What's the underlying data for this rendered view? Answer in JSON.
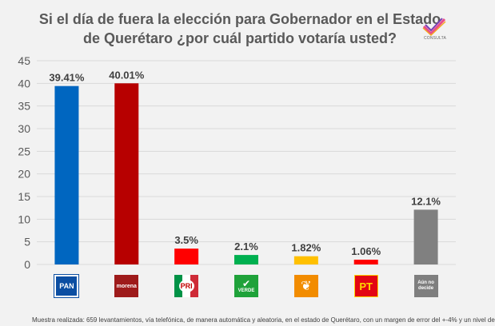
{
  "title": "Si el día de fuera la elección para Gobernador en el Estado de Querétaro ¿por cuál partido votaría usted?",
  "brand": "CONSULTA",
  "footnote": "Muestra realizada: 659 levantamientos, vía telefónica, de manera automática y aleatoria, en el estado de Querétaro, con un margen de error del +-4% y un nivel de",
  "colors": {
    "PAN": "#0066c0",
    "morena": "#b70000",
    "PRI": "#ff0000",
    "VERDE": "#00b050",
    "MC": "#ffc000",
    "PT": "#ff0000",
    "undecided": "#808080"
  },
  "chart_data": {
    "type": "bar",
    "title": "Si el día de fuera la elección para Gobernador en el Estado de Querétaro ¿por cuál partido votaría usted?",
    "categories": [
      "PAN",
      "morena",
      "PRI",
      "VERDE",
      "MC",
      "PT",
      "Aún no decide"
    ],
    "values": [
      39.41,
      40.01,
      3.5,
      2.1,
      1.82,
      1.06,
      12.1
    ],
    "data_labels": [
      "39.41%",
      "40.01%",
      "3.5%",
      "2.1%",
      "1.82%",
      "1.06%",
      "12.1%"
    ],
    "ylim": [
      0,
      45
    ],
    "yticks": [
      0,
      5,
      10,
      15,
      20,
      25,
      30,
      35,
      40,
      45
    ],
    "grid": true,
    "legend": "none"
  },
  "logos": [
    {
      "name": "pan-logo",
      "text": "PAN",
      "bg": "#0b4ea2",
      "fg": "#ffffff"
    },
    {
      "name": "morena-logo",
      "text": "morena",
      "bg": "#9e1b1b",
      "fg": "#ffffff"
    },
    {
      "name": "pri-logo",
      "text": "PRI",
      "bg": "#ffffff",
      "fg": "#c00000"
    },
    {
      "name": "verde-logo",
      "text": "VERDE",
      "bg": "#1fa23a",
      "fg": "#ffffff"
    },
    {
      "name": "mc-logo",
      "text": "",
      "bg": "#f28c00",
      "fg": "#ffffff"
    },
    {
      "name": "pt-logo",
      "text": "PT",
      "bg": "#e30613",
      "fg": "#ffd700"
    },
    {
      "name": "undecided-logo",
      "text": "Aún no decide",
      "bg": "#7f7f7f",
      "fg": "#ffffff"
    }
  ]
}
